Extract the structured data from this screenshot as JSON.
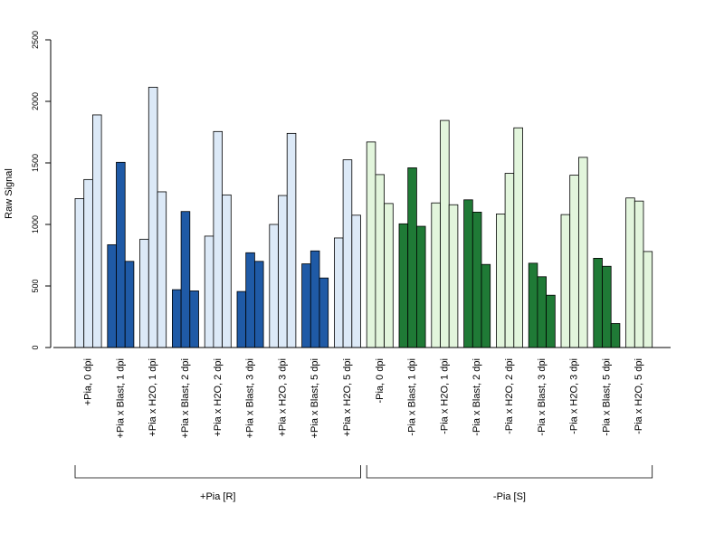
{
  "chart_data": {
    "type": "bar",
    "ylabel": "Raw Signal",
    "ylim": [
      0,
      2500
    ],
    "yticks": [
      0,
      500,
      1000,
      1500,
      2000,
      2500
    ],
    "grid": false,
    "categories": [
      {
        "label": "+Pia, 0 dpi",
        "values": [
          1210,
          1365,
          1890
        ],
        "color": "#dce9f7"
      },
      {
        "label": "+Pia x Blast, 1 dpi",
        "values": [
          835,
          1505,
          700
        ],
        "color": "#1f5aa6"
      },
      {
        "label": "+Pia x H2O, 1 dpi",
        "values": [
          880,
          2115,
          1265
        ],
        "color": "#dce9f7"
      },
      {
        "label": "+Pia x Blast, 2 dpi",
        "values": [
          470,
          1105,
          460
        ],
        "color": "#1f5aa6"
      },
      {
        "label": "+Pia x H2O, 2 dpi",
        "values": [
          905,
          1755,
          1240
        ],
        "color": "#dce9f7"
      },
      {
        "label": "+Pia x Blast, 3 dpi",
        "values": [
          455,
          770,
          700
        ],
        "color": "#1f5aa6"
      },
      {
        "label": "+Pia x H2O, 3 dpi",
        "values": [
          1000,
          1235,
          1740
        ],
        "color": "#dce9f7"
      },
      {
        "label": "+Pia x Blast, 5 dpi",
        "values": [
          680,
          785,
          565
        ],
        "color": "#1f5aa6"
      },
      {
        "label": "+Pia x H2O, 5 dpi",
        "values": [
          890,
          1525,
          1075
        ],
        "color": "#dce9f7"
      },
      {
        "label": "-Pia, 0 dpi",
        "values": [
          1670,
          1405,
          1170
        ],
        "color": "#e2f5dc"
      },
      {
        "label": "-Pia x Blast, 1 dpi",
        "values": [
          1005,
          1460,
          985
        ],
        "color": "#1f7a36"
      },
      {
        "label": "-Pia x H2O, 1 dpi",
        "values": [
          1175,
          1845,
          1160
        ],
        "color": "#e2f5dc"
      },
      {
        "label": "-Pia x Blast, 2 dpi",
        "values": [
          1200,
          1100,
          675
        ],
        "color": "#1f7a36"
      },
      {
        "label": "-Pia x H2O, 2 dpi",
        "values": [
          1085,
          1415,
          1785
        ],
        "color": "#e2f5dc"
      },
      {
        "label": "-Pia x Blast, 3 dpi",
        "values": [
          685,
          575,
          425
        ],
        "color": "#1f7a36"
      },
      {
        "label": "-Pia x H2O, 3 dpi",
        "values": [
          1080,
          1400,
          1545
        ],
        "color": "#e2f5dc"
      },
      {
        "label": "-Pia x Blast, 5 dpi",
        "values": [
          725,
          660,
          195
        ],
        "color": "#1f7a36"
      },
      {
        "label": "-Pia x H2O, 5 dpi",
        "values": [
          1215,
          1190,
          780
        ],
        "color": "#e2f5dc"
      }
    ],
    "groups": [
      {
        "label": "+Pia [R]",
        "from": 0,
        "to": 8
      },
      {
        "label": "-Pia [S]",
        "from": 9,
        "to": 17
      }
    ]
  }
}
